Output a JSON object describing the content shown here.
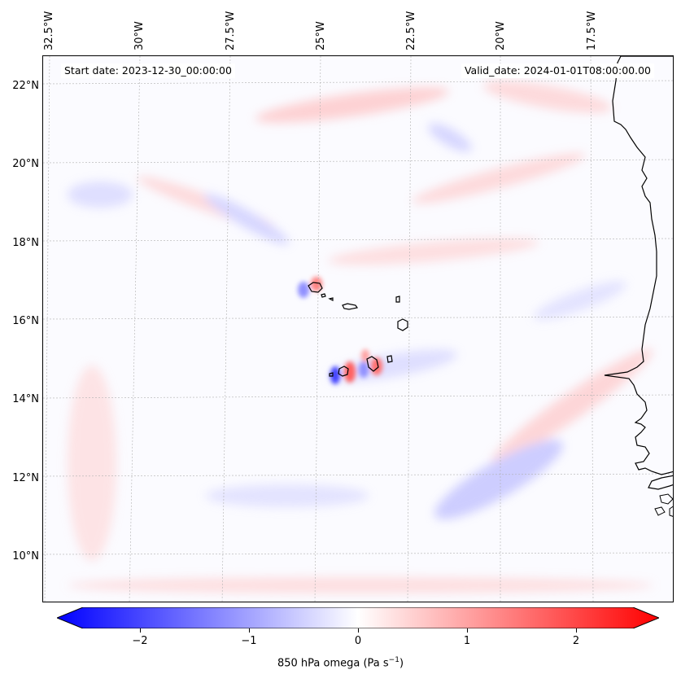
{
  "map": {
    "start_date": "Start date: 2023-12-30_00:00:00",
    "valid_date": "Valid_date: 2024-01-01T08:00:00.00",
    "lon_labels": [
      "32.5°W",
      "30°W",
      "27.5°W",
      "25°W",
      "22.5°W",
      "20°W",
      "17.5°W"
    ],
    "lat_labels": [
      "22°N",
      "20°N",
      "18°N",
      "16°N",
      "14°N",
      "12°N",
      "10°N"
    ],
    "colormap": {
      "negative": "#0000ff",
      "zero": "#ffffff",
      "positive": "#ff0000"
    },
    "coastline_color": "#000000",
    "gridlines": true
  },
  "colorbar": {
    "ticks": [
      "−2",
      "−1",
      "0",
      "1",
      "2"
    ],
    "label_prefix": "850 hPa omega (Pa s",
    "label_exp": "−1",
    "label_suffix": ")"
  }
}
